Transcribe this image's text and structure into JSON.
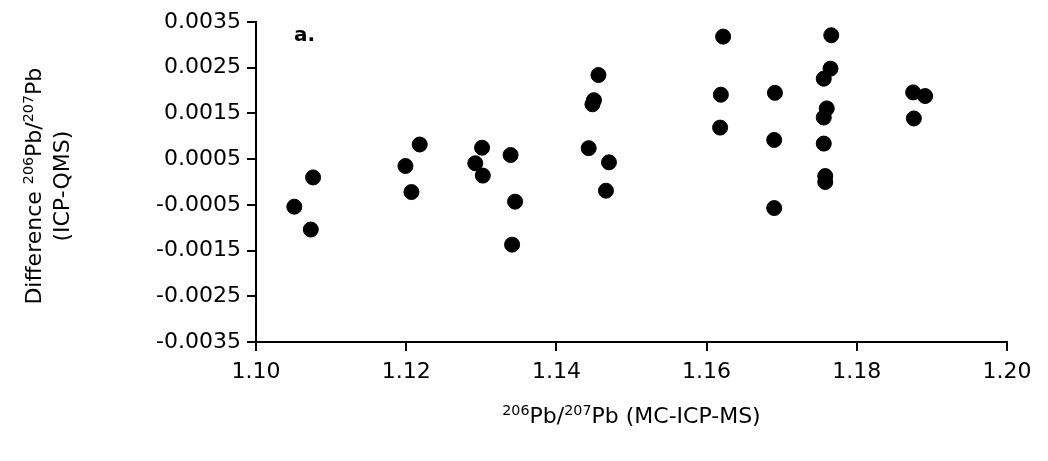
{
  "chart_data": {
    "type": "scatter",
    "xlabel": "$^{206}$Pb/$^{207}$Pb (MC-ICP-MS)",
    "ylabel": "Difference $^{206}$Pb/$^{207}$Pb (ICP-QMS)",
    "annotations": [
      "a."
    ],
    "x": [
      1.1051,
      1.1073,
      1.1076,
      1.1199,
      1.1207,
      1.1218,
      1.1292,
      1.1301,
      1.1302,
      1.1339,
      1.1345,
      1.1341,
      1.1456,
      1.145,
      1.1448,
      1.1443,
      1.147,
      1.1466,
      1.1622,
      1.1619,
      1.1618,
      1.1691,
      1.169,
      1.169,
      1.1766,
      1.1765,
      1.1756,
      1.176,
      1.1756,
      1.1756,
      1.1758,
      1.1758,
      1.1875,
      1.1891,
      1.1876
    ],
    "series": [
      {
        "color": "#000000",
        "values": [
          -0.00054,
          -0.00104,
          0.0001,
          0.00035,
          -0.00022,
          0.00082,
          0.00041,
          0.00075,
          0.00014,
          0.00059,
          -0.00043,
          -0.00137,
          0.00234,
          0.00179,
          0.0017,
          0.00074,
          0.00043,
          -0.00019,
          0.00318,
          0.00191,
          0.00119,
          0.00195,
          0.00092,
          -0.00057,
          0.00321,
          0.00248,
          0.00226,
          0.00161,
          0.00141,
          0.00084,
          0.00013,
          0.0,
          0.00196,
          0.00188,
          0.00139
        ]
      }
    ],
    "xlim": [
      1.1,
      1.2
    ],
    "xticks": [
      {
        "value": 1.1,
        "label": "1.10"
      },
      {
        "value": 1.12,
        "label": "1.12"
      },
      {
        "value": 1.14,
        "label": "1.14"
      },
      {
        "value": 1.16,
        "label": "1.16"
      },
      {
        "value": 1.18,
        "label": "1.18"
      },
      {
        "value": 1.2,
        "label": "1.20"
      }
    ],
    "ylim": [
      -0.0035,
      0.0035
    ],
    "yticks": [
      0.0035,
      0.0025,
      0.0015,
      0.0005,
      -0.0005,
      -0.0015,
      -0.0025,
      -0.0035
    ],
    "grid": false,
    "legend": false,
    "marker": "circle"
  }
}
